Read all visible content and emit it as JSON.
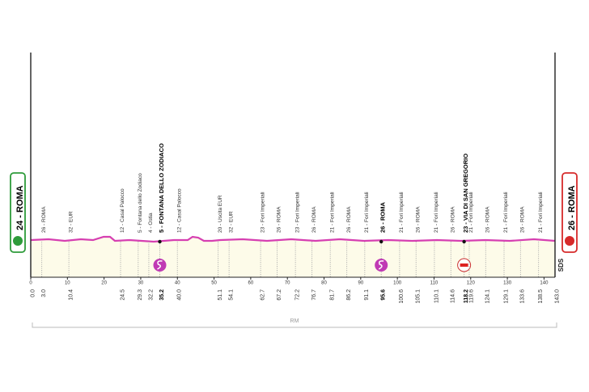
{
  "chart_data": {
    "type": "profile",
    "xlim": [
      0,
      143
    ],
    "xticks": [
      0,
      10,
      20,
      30,
      40,
      50,
      60,
      70,
      80,
      90,
      100,
      110,
      120,
      130,
      140
    ],
    "region": "RM",
    "logo": "SDS",
    "waypoints": [
      {
        "km": 0,
        "km_label": "0.0",
        "label": "24 - ROMA"
      },
      {
        "km": 3.0,
        "km_label": "3.0",
        "label": "26 - ROMA"
      },
      {
        "km": 10.4,
        "km_label": "10.4",
        "label": "32 - EUR"
      },
      {
        "km": 24.5,
        "km_label": "24.5",
        "label": "12 - Casal Palocco"
      },
      {
        "km": 29.3,
        "km_label": "29.3",
        "label": "5 - Fontana dello Zodiaco"
      },
      {
        "km": 32.2,
        "km_label": "32.2",
        "label": "4 - Ostia"
      },
      {
        "km": 35.2,
        "km_label": "35.2",
        "label": "5 - FONTANA DELLO ZODIACO",
        "icon": "sprint"
      },
      {
        "km": 40.0,
        "km_label": "40.0",
        "label": "12 - Casal Palocco"
      },
      {
        "km": 51.1,
        "km_label": "51.1",
        "label": "20 - Uscita EUR"
      },
      {
        "km": 54.1,
        "km_label": "54.1",
        "label": "32 - EUR"
      },
      {
        "km": 62.7,
        "km_label": "62.7",
        "label": "23 - Fori Imperiali"
      },
      {
        "km": 67.2,
        "km_label": "67.2",
        "label": "26 - ROMA"
      },
      {
        "km": 72.2,
        "km_label": "72.2",
        "label": "23 - Fori Imperiali"
      },
      {
        "km": 76.7,
        "km_label": "76.7",
        "label": "26 - ROMA"
      },
      {
        "km": 81.7,
        "km_label": "81.7",
        "label": "21 - Fori Imperiali"
      },
      {
        "km": 86.2,
        "km_label": "86.2",
        "label": "26 - ROMA"
      },
      {
        "km": 91.1,
        "km_label": "91.1",
        "label": "21 - Fori Imperiali"
      },
      {
        "km": 95.6,
        "km_label": "95.6",
        "label": "26 - ROMA",
        "icon": "sprint"
      },
      {
        "km": 100.6,
        "km_label": "100.6",
        "label": "21 - Fori Imperiali"
      },
      {
        "km": 105.1,
        "km_label": "105.1",
        "label": "26 - ROMA"
      },
      {
        "km": 110.1,
        "km_label": "110.1",
        "label": "21 - Fori Imperiali"
      },
      {
        "km": 114.6,
        "km_label": "114.6",
        "label": "26 - ROMA"
      },
      {
        "km": 118.2,
        "km_label": "118.2",
        "label": "23 - VIA DI SAN GREGORIO",
        "icon": "redbull"
      },
      {
        "km": 119.6,
        "km_label": "119.6",
        "label": "21 - Fori Imperiali"
      },
      {
        "km": 124.1,
        "km_label": "124.1",
        "label": "26 - ROMA"
      },
      {
        "km": 129.1,
        "km_label": "129.1",
        "label": "21 - Fori Imperiali"
      },
      {
        "km": 133.6,
        "km_label": "133.6",
        "label": "26 - ROMA"
      },
      {
        "km": 138.5,
        "km_label": "138.5",
        "label": "21 - Fori Imperiali"
      },
      {
        "km": 143.0,
        "km_label": "143.0",
        "label": "26 - ROMA"
      }
    ]
  }
}
